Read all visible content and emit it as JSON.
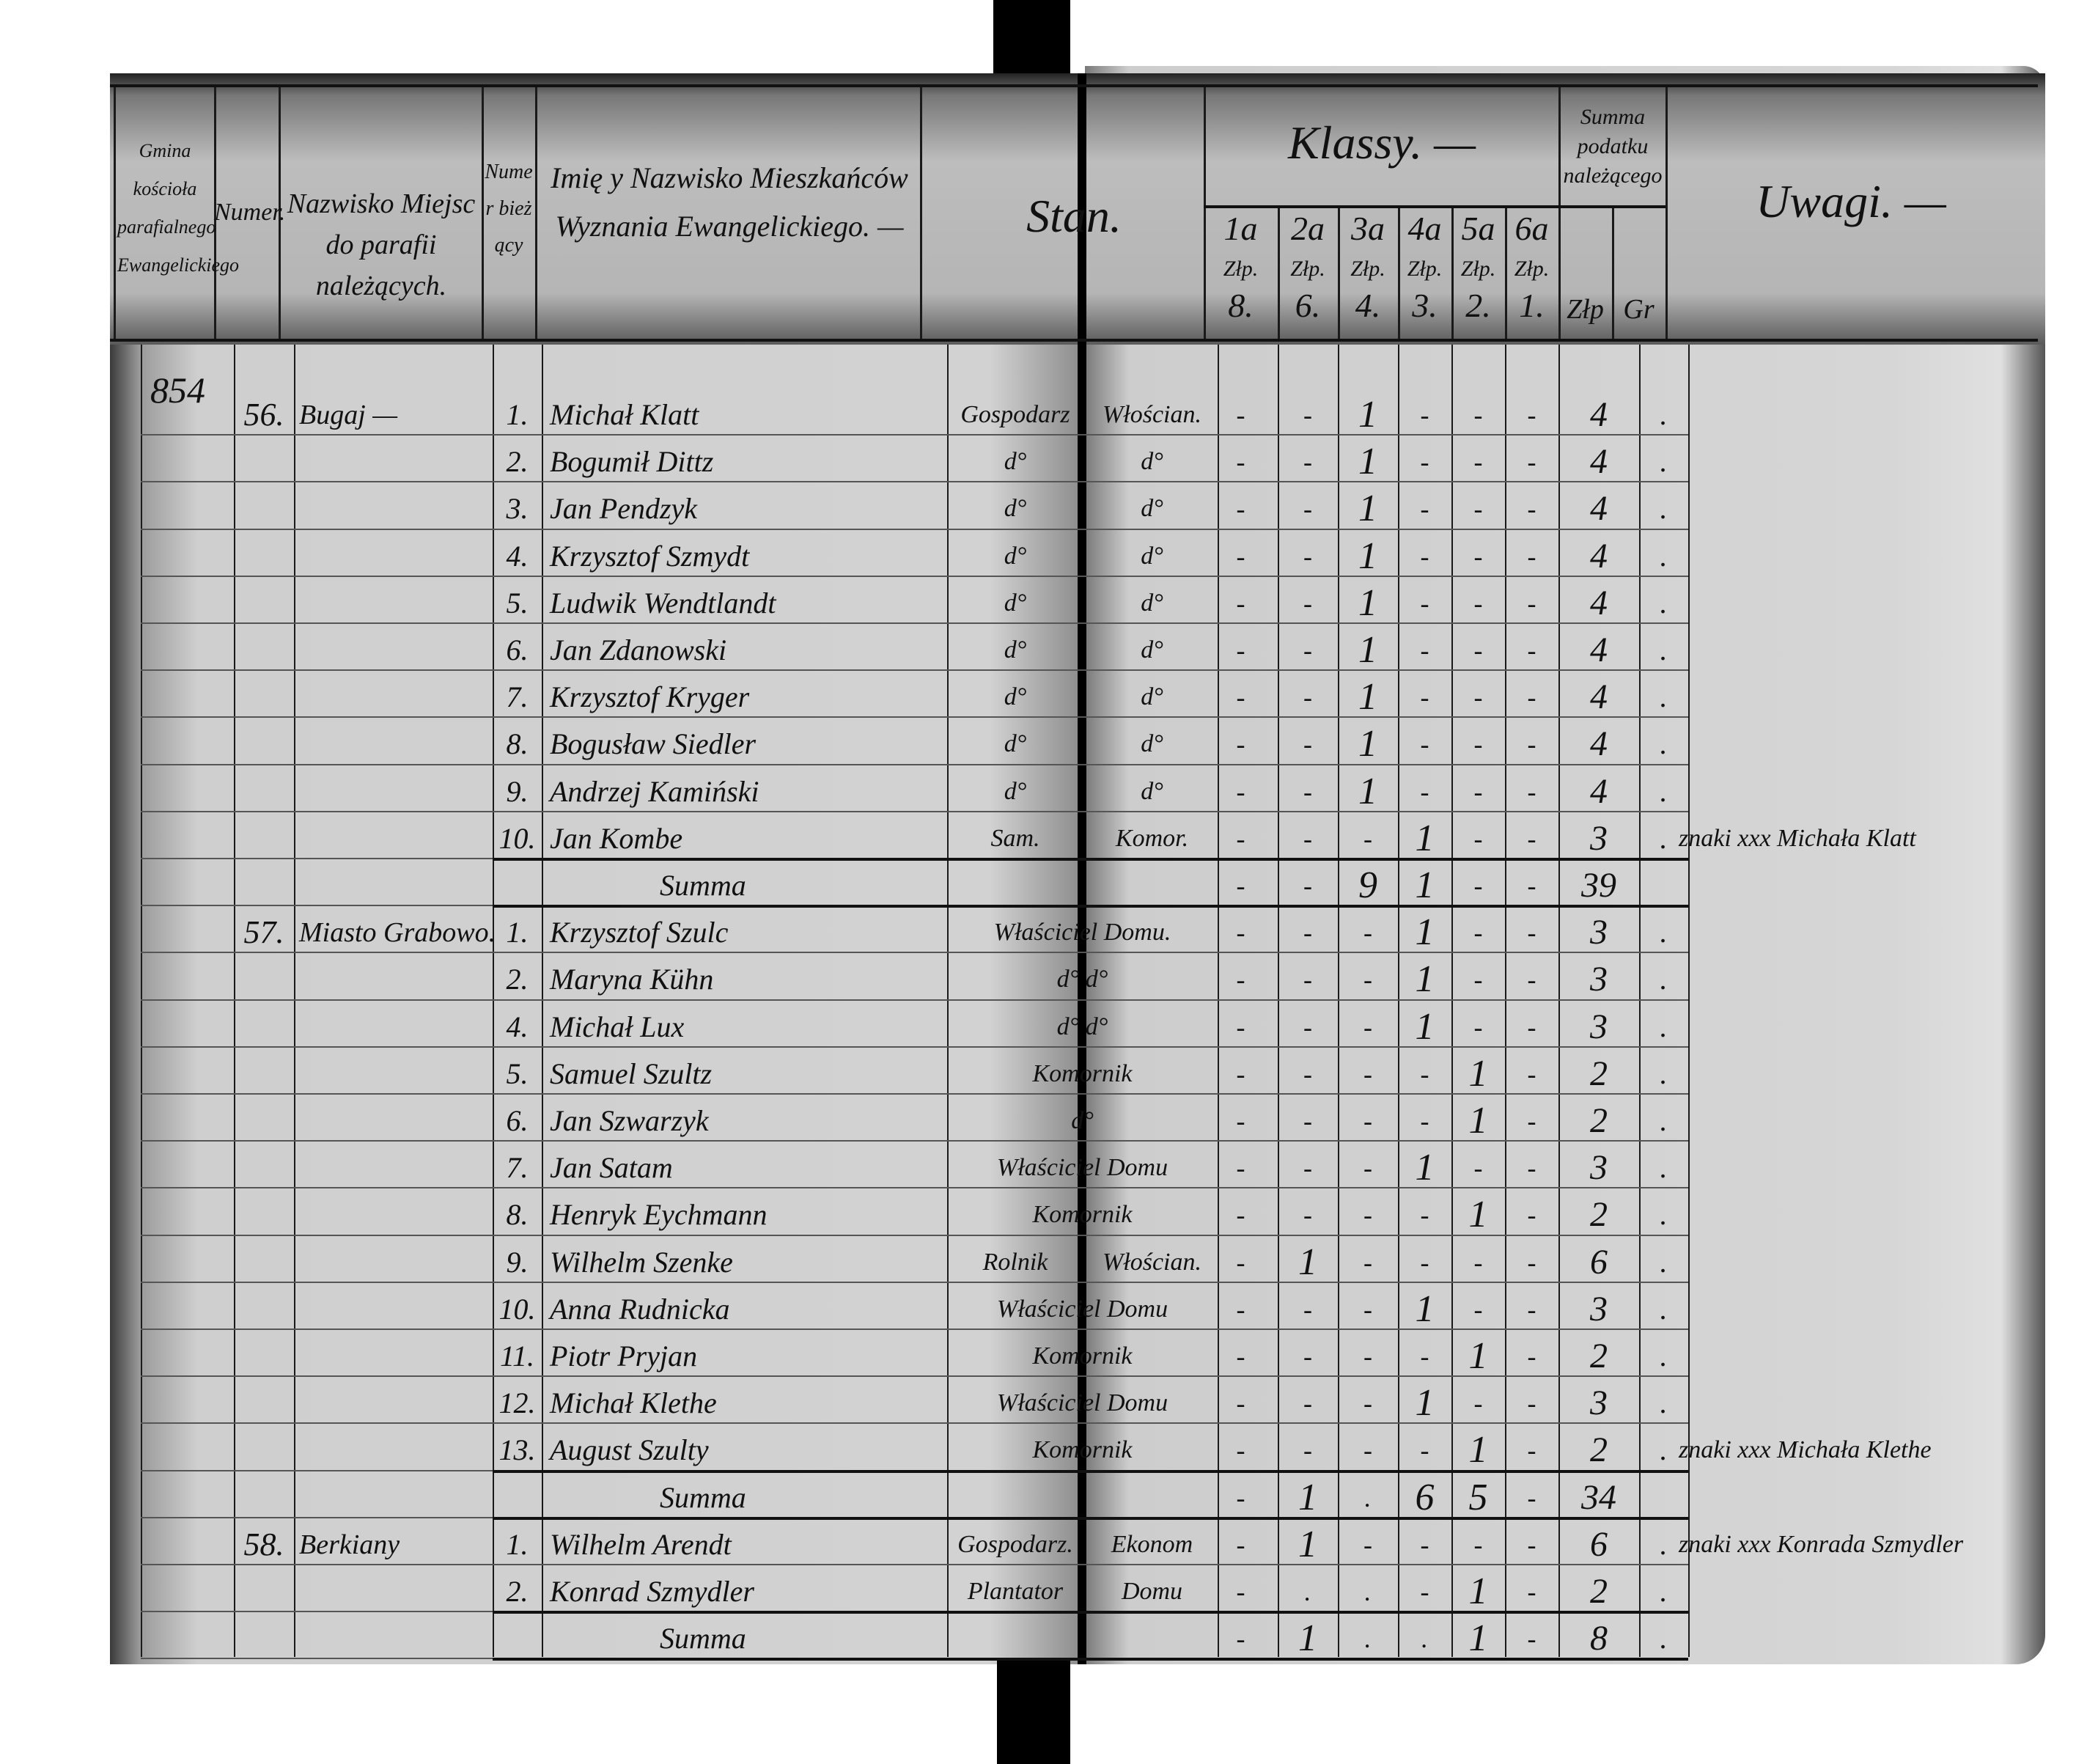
{
  "margin_note": "854",
  "header": {
    "parish": "Gmina kościoła parafialnego Ewangelickiego",
    "number": "Numer.",
    "places": "Nazwisko Miejsc do parafii należących.",
    "running_number": "Numer bieżący",
    "names": "Imię y Nazwisko Mieszkańców Wyznania Ewangelickiego. —",
    "status": "Stan.",
    "classes": "Klassy. —",
    "class_columns": [
      {
        "label": "1a",
        "unit": "Złp.",
        "rate": "8."
      },
      {
        "label": "2a",
        "unit": "Złp.",
        "rate": "6."
      },
      {
        "label": "3a",
        "unit": "Złp.",
        "rate": "4."
      },
      {
        "label": "4a",
        "unit": "Złp.",
        "rate": "3."
      },
      {
        "label": "5a",
        "unit": "Złp.",
        "rate": "2."
      },
      {
        "label": "6a",
        "unit": "Złp.",
        "rate": "1."
      }
    ],
    "tax_sum": "Summa podatku należącego",
    "tax_zl": "Złp",
    "tax_gr": "Gr",
    "remarks": "Uwagi. —"
  },
  "rows": [
    {
      "group": "56.",
      "place": "Bugaj —",
      "no": "1.",
      "name": "Michał Klatt",
      "status1": "Gospodarz",
      "status2": "Włościan.",
      "classes": [
        "-",
        "-",
        "1",
        "-",
        "-",
        "-"
      ],
      "zl": "4",
      "gr": ".",
      "remark": ""
    },
    {
      "no": "2.",
      "name": "Bogumił Dittz",
      "status1": "d°",
      "status2": "d°",
      "classes": [
        "-",
        "-",
        "1",
        "-",
        "-",
        "-"
      ],
      "zl": "4",
      "gr": ".",
      "remark": ""
    },
    {
      "no": "3.",
      "name": "Jan Pendzyk",
      "status1": "d°",
      "status2": "d°",
      "classes": [
        "-",
        "-",
        "1",
        "-",
        "-",
        "-"
      ],
      "zl": "4",
      "gr": ".",
      "remark": ""
    },
    {
      "no": "4.",
      "name": "Krzysztof Szmydt",
      "status1": "d°",
      "status2": "d°",
      "classes": [
        "-",
        "-",
        "1",
        "-",
        "-",
        "-"
      ],
      "zl": "4",
      "gr": ".",
      "remark": ""
    },
    {
      "no": "5.",
      "name": "Ludwik Wendtlandt",
      "status1": "d°",
      "status2": "d°",
      "classes": [
        "-",
        "-",
        "1",
        "-",
        "-",
        "-"
      ],
      "zl": "4",
      "gr": ".",
      "remark": ""
    },
    {
      "no": "6.",
      "name": "Jan Zdanowski",
      "status1": "d°",
      "status2": "d°",
      "classes": [
        "-",
        "-",
        "1",
        "-",
        "-",
        "-"
      ],
      "zl": "4",
      "gr": ".",
      "remark": ""
    },
    {
      "no": "7.",
      "name": "Krzysztof Kryger",
      "status1": "d°",
      "status2": "d°",
      "classes": [
        "-",
        "-",
        "1",
        "-",
        "-",
        "-"
      ],
      "zl": "4",
      "gr": ".",
      "remark": ""
    },
    {
      "no": "8.",
      "name": "Bogusław Siedler",
      "status1": "d°",
      "status2": "d°",
      "classes": [
        "-",
        "-",
        "1",
        "-",
        "-",
        "-"
      ],
      "zl": "4",
      "gr": ".",
      "remark": ""
    },
    {
      "no": "9.",
      "name": "Andrzej Kamiński",
      "status1": "d°",
      "status2": "d°",
      "classes": [
        "-",
        "-",
        "1",
        "-",
        "-",
        "-"
      ],
      "zl": "4",
      "gr": ".",
      "remark": ""
    },
    {
      "no": "10.",
      "name": "Jan Kombe",
      "status1": "Sam.",
      "status2": "Komor.",
      "classes": [
        "-",
        "-",
        "-",
        "1",
        "-",
        "-"
      ],
      "zl": "3",
      "gr": ".",
      "remark": "znaki xxx Michała Klatt"
    },
    {
      "summary": true,
      "name": "Summa",
      "classes": [
        "-",
        "-",
        "9",
        "1",
        "-",
        "-"
      ],
      "zl": "39",
      "gr": "",
      "remark": ""
    },
    {
      "group": "57.",
      "place": "Miasto Grabowo.",
      "no": "1.",
      "name": "Krzysztof Szulc",
      "status1": "Właściciel Domu.",
      "status2": "",
      "classes": [
        "-",
        "-",
        "-",
        "1",
        "-",
        "-"
      ],
      "zl": "3",
      "gr": ".",
      "remark": ""
    },
    {
      "no": "2.",
      "name": "Maryna Kühn",
      "status1": "d° d°",
      "status2": "",
      "classes": [
        "-",
        "-",
        "-",
        "1",
        "-",
        "-"
      ],
      "zl": "3",
      "gr": ".",
      "remark": ""
    },
    {
      "no": "4.",
      "name": "Michał Lux",
      "status1": "d° d°",
      "status2": "",
      "classes": [
        "-",
        "-",
        "-",
        "1",
        "-",
        "-"
      ],
      "zl": "3",
      "gr": ".",
      "remark": ""
    },
    {
      "no": "5.",
      "name": "Samuel Szultz",
      "status1": "Komornik",
      "status2": "",
      "classes": [
        "-",
        "-",
        "-",
        "-",
        "1",
        "-"
      ],
      "zl": "2",
      "gr": ".",
      "remark": ""
    },
    {
      "no": "6.",
      "name": "Jan Szwarzyk",
      "status1": "d°",
      "status2": "",
      "classes": [
        "-",
        "-",
        "-",
        "-",
        "1",
        "-"
      ],
      "zl": "2",
      "gr": ".",
      "remark": ""
    },
    {
      "no": "7.",
      "name": "Jan Satam",
      "status1": "Właściciel Domu",
      "status2": "",
      "classes": [
        "-",
        "-",
        "-",
        "1",
        "-",
        "-"
      ],
      "zl": "3",
      "gr": ".",
      "remark": ""
    },
    {
      "no": "8.",
      "name": "Henryk Eychmann",
      "status1": "Komornik",
      "status2": "",
      "classes": [
        "-",
        "-",
        "-",
        "-",
        "1",
        "-"
      ],
      "zl": "2",
      "gr": ".",
      "remark": ""
    },
    {
      "no": "9.",
      "name": "Wilhelm Szenke",
      "status1": "Rolnik",
      "status2": "Włościan.",
      "classes": [
        "-",
        "1",
        "-",
        "-",
        "-",
        "-"
      ],
      "zl": "6",
      "gr": ".",
      "remark": ""
    },
    {
      "no": "10.",
      "name": "Anna Rudnicka",
      "status1": "Właściciel Domu",
      "status2": "",
      "classes": [
        "-",
        "-",
        "-",
        "1",
        "-",
        "-"
      ],
      "zl": "3",
      "gr": ".",
      "remark": ""
    },
    {
      "no": "11.",
      "name": "Piotr Pryjan",
      "status1": "Komornik",
      "status2": "",
      "classes": [
        "-",
        "-",
        "-",
        "-",
        "1",
        "-"
      ],
      "zl": "2",
      "gr": ".",
      "remark": ""
    },
    {
      "no": "12.",
      "name": "Michał Klethe",
      "status1": "Właściciel Domu",
      "status2": "",
      "classes": [
        "-",
        "-",
        "-",
        "1",
        "-",
        "-"
      ],
      "zl": "3",
      "gr": ".",
      "remark": ""
    },
    {
      "no": "13.",
      "name": "August Szulty",
      "status1": "Komornik",
      "status2": "",
      "classes": [
        "-",
        "-",
        "-",
        "-",
        "1",
        "-"
      ],
      "zl": "2",
      "gr": ".",
      "remark": "znaki xxx Michała Klethe"
    },
    {
      "summary": true,
      "name": "Summa",
      "classes": [
        "-",
        "1",
        ".",
        "6",
        "5",
        "-"
      ],
      "zl": "34",
      "gr": "",
      "remark": ""
    },
    {
      "group": "58.",
      "place": "Berkiany",
      "no": "1.",
      "name": "Wilhelm Arendt",
      "status1": "Gospodarz.",
      "status2": "Ekonom",
      "classes": [
        "-",
        "1",
        "-",
        "-",
        "-",
        "-"
      ],
      "zl": "6",
      "gr": ".",
      "remark": "znaki xxx Konrada Szmydler"
    },
    {
      "no": "2.",
      "name": "Konrad Szmydler",
      "status1": "Plantator",
      "status2": "Domu",
      "classes": [
        "-",
        ".",
        ".",
        "-",
        "1",
        "-"
      ],
      "zl": "2",
      "gr": ".",
      "remark": ""
    },
    {
      "summary": true,
      "name": "Summa",
      "classes": [
        "-",
        "1",
        ".",
        ".",
        "1",
        "-"
      ],
      "zl": "8",
      "gr": ".",
      "remark": ""
    }
  ]
}
